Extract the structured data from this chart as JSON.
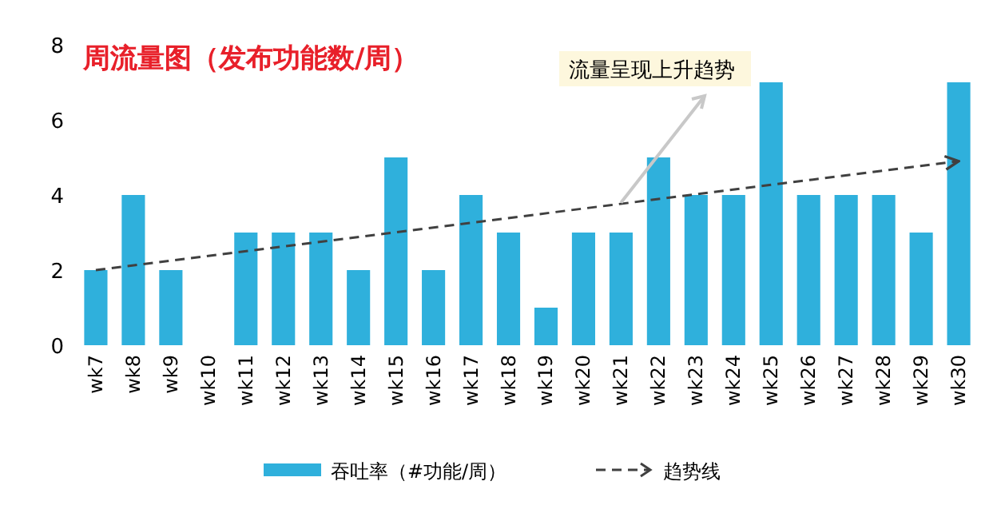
{
  "chart_data": {
    "type": "bar",
    "title": "周流量图（发布功能数/周）",
    "categories": [
      "wk7",
      "wk8",
      "wk9",
      "wk10",
      "wk11",
      "wk12",
      "wk13",
      "wk14",
      "wk15",
      "wk16",
      "wk17",
      "wk18",
      "wk19",
      "wk20",
      "wk21",
      "wk22",
      "wk23",
      "wk24",
      "wk25",
      "wk26",
      "wk27",
      "wk28",
      "wk29",
      "wk30"
    ],
    "series": [
      {
        "name": "吞吐率（#功能/周）",
        "color": "#2fb0dc",
        "values": [
          2,
          4,
          2,
          0,
          3,
          3,
          3,
          2,
          5,
          2,
          4,
          3,
          1,
          3,
          3,
          5,
          4,
          4,
          7,
          4,
          4,
          4,
          3,
          7
        ]
      },
      {
        "name": "趋势线",
        "type": "line",
        "color": "#404040",
        "line_style": "dashed",
        "x": [
          "wk7",
          "wk30"
        ],
        "values": [
          2,
          4.9
        ]
      }
    ],
    "ylim": [
      0,
      8
    ],
    "yticks": [
      0,
      2,
      4,
      6,
      8
    ],
    "legend": "bottom",
    "annotations": [
      {
        "text": "流量呈现上升趋势",
        "x": "wk21",
        "y": 3.8
      }
    ]
  }
}
